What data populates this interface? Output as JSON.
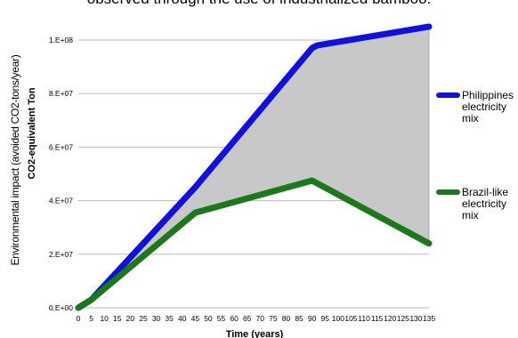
{
  "caption": "observed through the use of industrialized bamboo.",
  "chart_data": {
    "type": "line",
    "title": "",
    "ylabel_outer": "Environmental impact (avoided CO2-tons/year)",
    "ylabel": "CO2-equivalent Ton",
    "xlabel": "Time (years)",
    "x_ticks": [
      "0",
      "5",
      "10",
      "15",
      "20",
      "25",
      "30",
      "35",
      "40",
      "45",
      "50",
      "55",
      "60",
      "65",
      "70",
      "75",
      "80",
      "85",
      "90",
      "95",
      "100",
      "105",
      "110",
      "115",
      "120",
      "125",
      "130",
      "135"
    ],
    "y_ticks": [
      "0.E+00",
      "2.E+07",
      "4.E+07",
      "6.E+07",
      "8.E+07",
      "1.E+08"
    ],
    "ylim": [
      0,
      100000000
    ],
    "xlim": [
      0,
      135
    ],
    "grid": "horizontal",
    "legend_position": "right",
    "shade_between_series": true,
    "shade_color": "#c8c8c8",
    "series": [
      {
        "name": "Philippines electricity mix",
        "color": "#1010e0",
        "x": [
          0,
          5,
          45,
          90,
          92,
          135
        ],
        "y": [
          0,
          3000000,
          45000000,
          97000000,
          98000000,
          105000000
        ]
      },
      {
        "name": "Brazil-like electricity mix",
        "color": "#1a7a1a",
        "x": [
          0,
          5,
          45,
          90,
          135
        ],
        "y": [
          0,
          3000000,
          35500000,
          47500000,
          24000000
        ]
      }
    ]
  }
}
